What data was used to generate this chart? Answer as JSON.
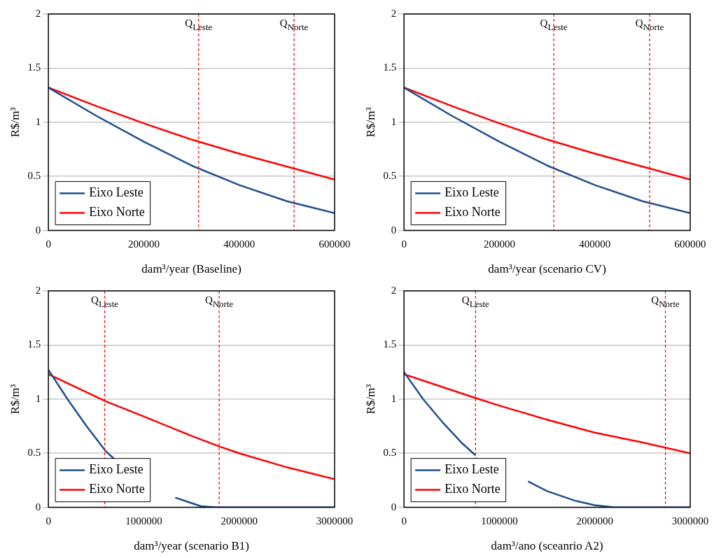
{
  "chart_data": [
    {
      "type": "line",
      "xlabel": "dam³/year (Baseline)",
      "ylabel": "R$/m³",
      "xlim": [
        0,
        600000
      ],
      "xticks": [
        0,
        200000,
        400000,
        600000
      ],
      "ylim": [
        0,
        2
      ],
      "yticks": [
        0,
        0.5,
        1,
        1.5,
        2
      ],
      "grid": "y",
      "legend": "bottom left",
      "marker": "none",
      "series": [
        {
          "name": "Eixo Leste",
          "color": "#1f4e8c",
          "x": [
            0,
            100000,
            200000,
            300000,
            400000,
            500000,
            600000
          ],
          "values": [
            1.32,
            1.06,
            0.82,
            0.6,
            0.42,
            0.27,
            0.16
          ]
        },
        {
          "name": "Eixo Norte",
          "color": "#ff0000",
          "x": [
            0,
            100000,
            200000,
            300000,
            400000,
            500000,
            600000
          ],
          "values": [
            1.32,
            1.15,
            0.99,
            0.84,
            0.71,
            0.59,
            0.47
          ]
        }
      ],
      "ref_lines": [
        {
          "axis": "x",
          "value": 315000,
          "label": "Q$_{Leste}$",
          "color": "#ff0000",
          "line_style": "dashed"
        },
        {
          "axis": "x",
          "value": 515000,
          "label": "Q$_{Norte}$",
          "color": "#ff0000",
          "line_style": "dashed"
        }
      ]
    },
    {
      "type": "line",
      "xlabel": "dam³/year (scenario CV)",
      "ylabel": "R$/m³",
      "xlim": [
        0,
        600000
      ],
      "xticks": [
        0,
        200000,
        400000,
        600000
      ],
      "ylim": [
        0,
        2
      ],
      "yticks": [
        0,
        0.5,
        1,
        1.5,
        2
      ],
      "grid": "y",
      "legend": "bottom left",
      "marker": "none",
      "series": [
        {
          "name": "Eixo Leste",
          "color": "#1f4e8c",
          "x": [
            0,
            100000,
            200000,
            300000,
            400000,
            500000,
            600000
          ],
          "values": [
            1.32,
            1.06,
            0.82,
            0.6,
            0.42,
            0.27,
            0.16
          ]
        },
        {
          "name": "Eixo Norte",
          "color": "#ff0000",
          "x": [
            0,
            100000,
            200000,
            300000,
            400000,
            500000,
            600000
          ],
          "values": [
            1.32,
            1.15,
            0.99,
            0.84,
            0.71,
            0.59,
            0.47
          ]
        }
      ],
      "ref_lines": [
        {
          "axis": "x",
          "value": 314000,
          "label": "Q$_{Leste}$",
          "color": "#ff0000",
          "line_style": "dashed"
        },
        {
          "axis": "x",
          "value": 515000,
          "label": "Q$_{Norte}$",
          "color": "#ff0000",
          "line_style": "dashed"
        }
      ]
    },
    {
      "type": "line",
      "xlabel": "dam³/year (scenario B1)",
      "ylabel": "R$/m³",
      "xlim": [
        0,
        3000000
      ],
      "xticks": [
        0,
        1000000,
        2000000,
        3000000
      ],
      "ylim": [
        0,
        2
      ],
      "yticks": [
        0,
        0.5,
        1,
        1.5,
        2
      ],
      "grid": "y",
      "legend": "bottom left",
      "marker": "none",
      "series": [
        {
          "name": "Eixo Leste",
          "color": "#1f4e8c",
          "x": [
            0,
            200000,
            400000,
            600000,
            700000,
            1000000,
            1330000,
            1600000,
            1750000,
            3000000
          ],
          "values": [
            1.27,
            1.0,
            0.75,
            0.52,
            0.44,
            null,
            0.09,
            0.01,
            0,
            0
          ]
        },
        {
          "name": "Eixo Norte",
          "color": "#ff0000",
          "x": [
            0,
            600000,
            1000000,
            1500000,
            1800000,
            2000000,
            2500000,
            3000000
          ],
          "values": [
            1.23,
            0.98,
            0.84,
            0.66,
            0.56,
            0.5,
            0.37,
            0.26
          ]
        }
      ],
      "ref_lines": [
        {
          "axis": "x",
          "value": 590000,
          "label": "Q$_{Leste}$",
          "color": "#ff0000",
          "line_style": "dashed"
        },
        {
          "axis": "x",
          "value": 1790000,
          "label": "Q$_{Norte}$",
          "color": "#ff0000",
          "line_style": "dashed"
        }
      ]
    },
    {
      "type": "line",
      "xlabel": "dam³/ano (sceanrio A2)",
      "ylabel": "R$/m³",
      "xlim": [
        0,
        3000000
      ],
      "xticks": [
        0,
        1000000,
        2000000,
        3000000
      ],
      "ylim": [
        0,
        2
      ],
      "yticks": [
        0,
        0.5,
        1,
        1.5,
        2
      ],
      "grid": "y",
      "legend": "bottom left",
      "marker": "none",
      "series": [
        {
          "name": "Eixo Leste",
          "color": "#1f4e8c",
          "x": [
            0,
            200000,
            400000,
            600000,
            750000,
            850000,
            1100000,
            1300000,
            1500000,
            1800000,
            2000000,
            2200000,
            3000000
          ],
          "values": [
            1.25,
            1.0,
            0.79,
            0.6,
            0.48,
            null,
            null,
            0.24,
            0.15,
            0.06,
            0.02,
            0,
            0
          ]
        },
        {
          "name": "Eixo Norte",
          "color": "#ff0000",
          "x": [
            0,
            750000,
            1000000,
            1500000,
            2000000,
            2500000,
            3000000
          ],
          "values": [
            1.23,
            1.01,
            0.94,
            0.81,
            0.69,
            0.6,
            0.5
          ]
        }
      ],
      "ref_lines": [
        {
          "axis": "x",
          "value": 750000,
          "label": "Q$_{Leste}$",
          "color": "#ff0000",
          "line_style": "dashed"
        },
        {
          "axis": "x",
          "value": 2740000,
          "label": "Q$_{Norte}$",
          "color": "#ff0000",
          "line_style": "dashed"
        }
      ]
    }
  ]
}
